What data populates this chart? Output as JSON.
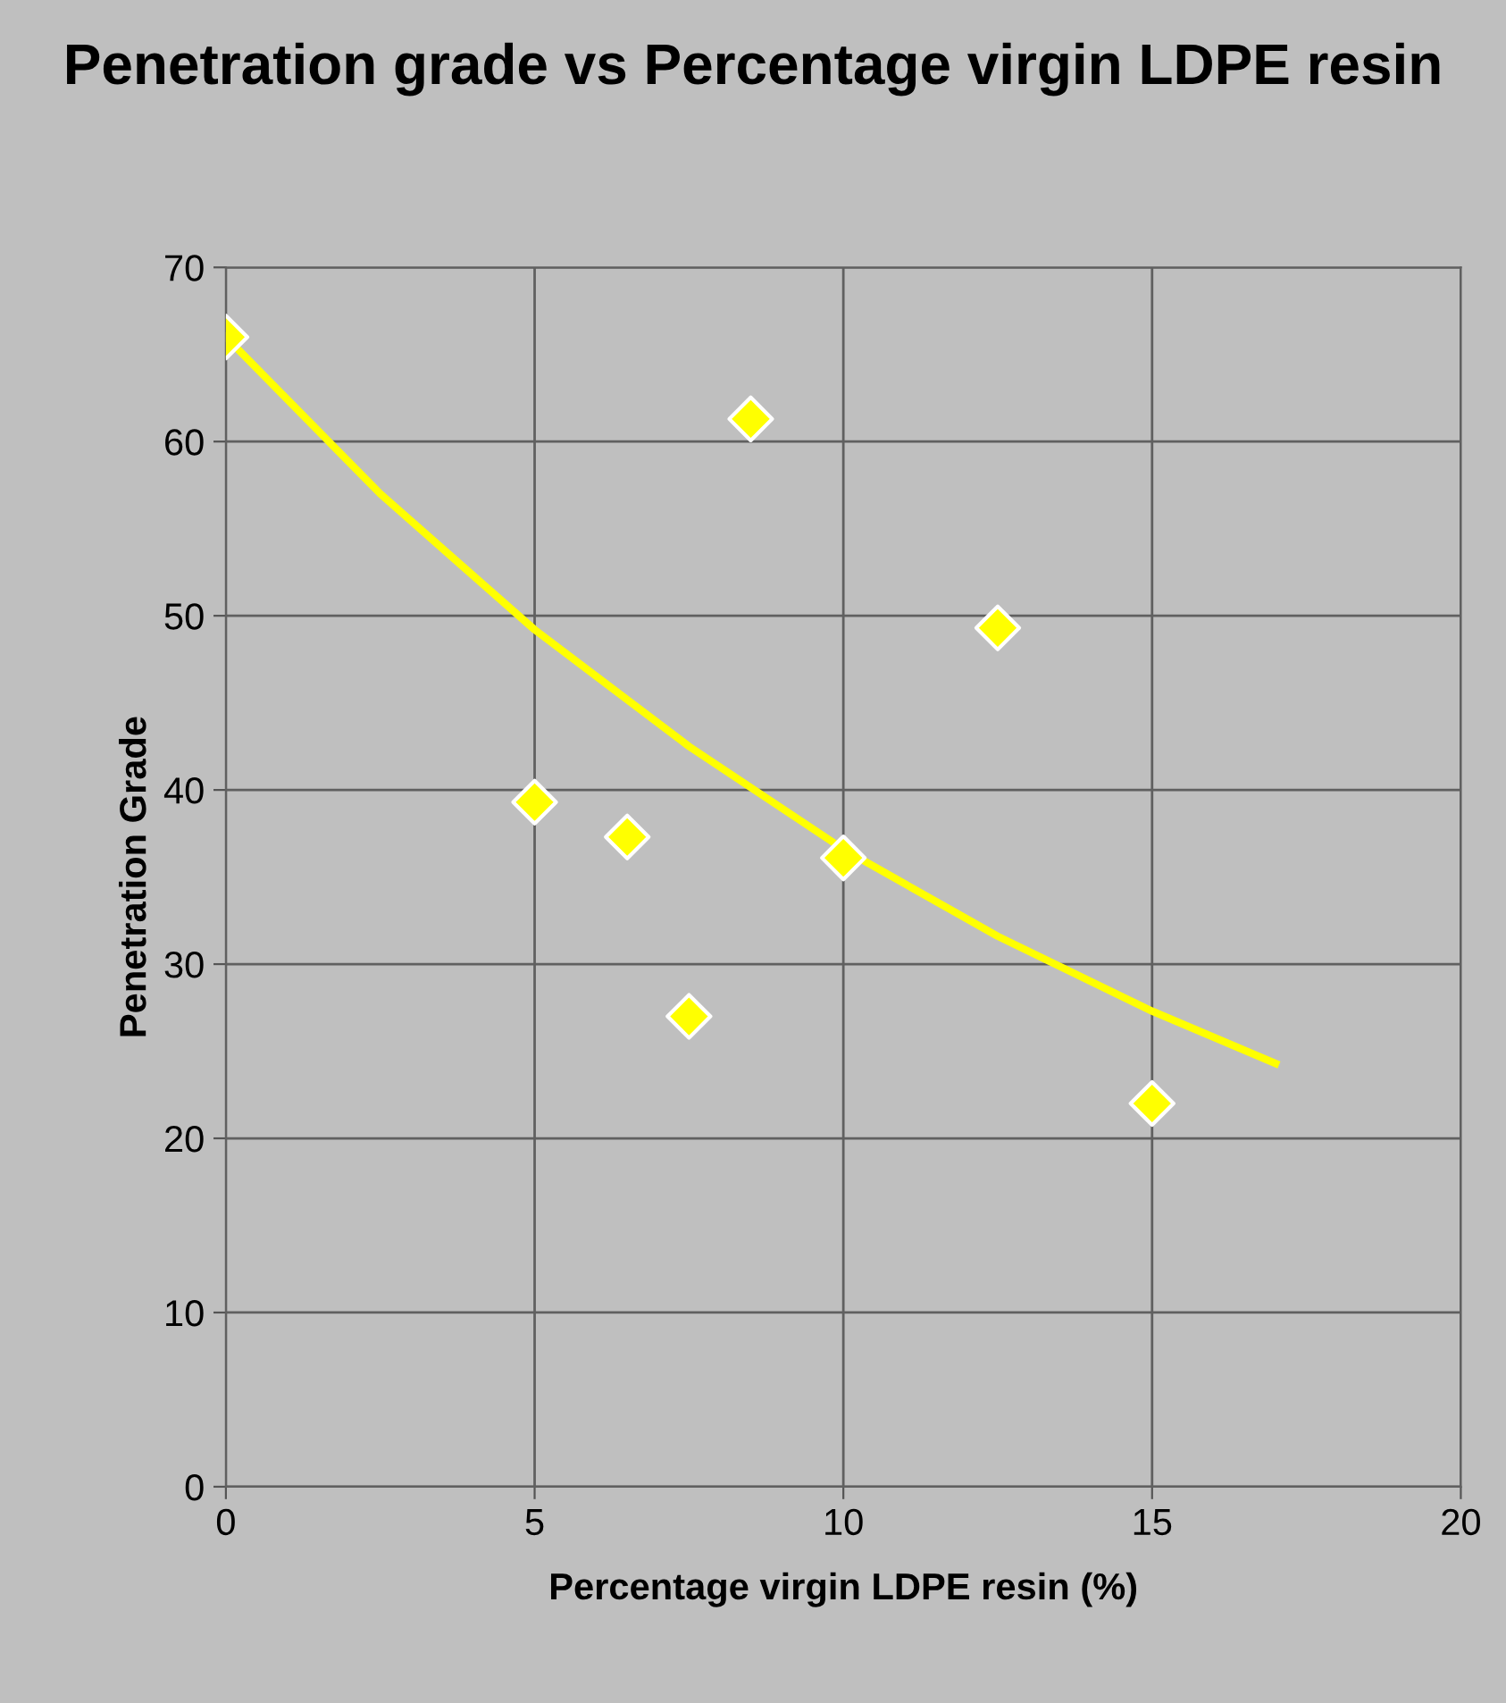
{
  "chart_data": {
    "type": "scatter",
    "title": "Penetration grade vs Percentage virgin LDPE resin",
    "xlabel": "Percentage virgin LDPE resin (%)",
    "ylabel": "Penetration Grade",
    "series": [
      {
        "color": "#ffff00",
        "marker": "diamond",
        "x": [
          0,
          5,
          6.5,
          7.5,
          8.5,
          10,
          12.5,
          15
        ],
        "values": [
          66,
          39.3,
          37.3,
          27.0,
          61.3,
          36.1,
          49.3,
          22.0
        ]
      },
      {
        "type": "line",
        "color": "#ffff00",
        "marker": "none",
        "line_style": "solid",
        "x": [
          0,
          2.5,
          5,
          7.5,
          10,
          12.5,
          15,
          17
        ],
        "values": [
          66,
          57.0,
          49.2,
          42.5,
          36.6,
          31.6,
          27.3,
          24.3
        ]
      }
    ],
    "xlim": [
      0,
      20
    ],
    "xticks": [
      0,
      5,
      10,
      15,
      20
    ],
    "ylim": [
      0,
      70
    ],
    "yticks": [
      0,
      10,
      20,
      30,
      40,
      50,
      60,
      70
    ],
    "grid": true,
    "legend": false
  }
}
